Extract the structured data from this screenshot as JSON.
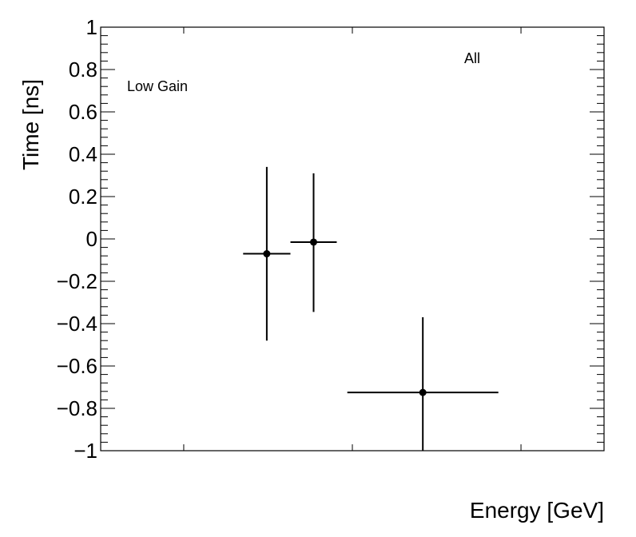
{
  "chart_data": {
    "type": "scatter",
    "title": "",
    "xlabel": "Energy [GeV]",
    "ylabel": "Time [ns]",
    "ylim": [
      -1,
      1
    ],
    "y_ticks": [
      "1",
      "0.8",
      "0.6",
      "0.4",
      "0.2",
      "0",
      "−0.2",
      "−0.4",
      "−0.6",
      "−0.8",
      "−1"
    ],
    "y_tick_values": [
      1,
      0.8,
      0.6,
      0.4,
      0.2,
      0,
      -0.2,
      -0.4,
      -0.6,
      -0.8,
      -1
    ],
    "xlim": [
      0,
      1
    ],
    "annotations": {
      "gain": "Low Gain",
      "selection": "All"
    },
    "series": [
      {
        "points": [
          {
            "x": 0.33,
            "xerr": 0.047,
            "y": -0.07,
            "yerr_low": 0.41,
            "yerr_high": 0.41
          },
          {
            "x": 0.423,
            "xerr": 0.046,
            "y": -0.015,
            "yerr_low": 0.33,
            "yerr_high": 0.325
          },
          {
            "x": 0.64,
            "xerr": 0.15,
            "y": -0.725,
            "yerr_low": 0.275,
            "yerr_high": 0.355
          }
        ]
      }
    ],
    "grid": false,
    "legend": "none"
  }
}
